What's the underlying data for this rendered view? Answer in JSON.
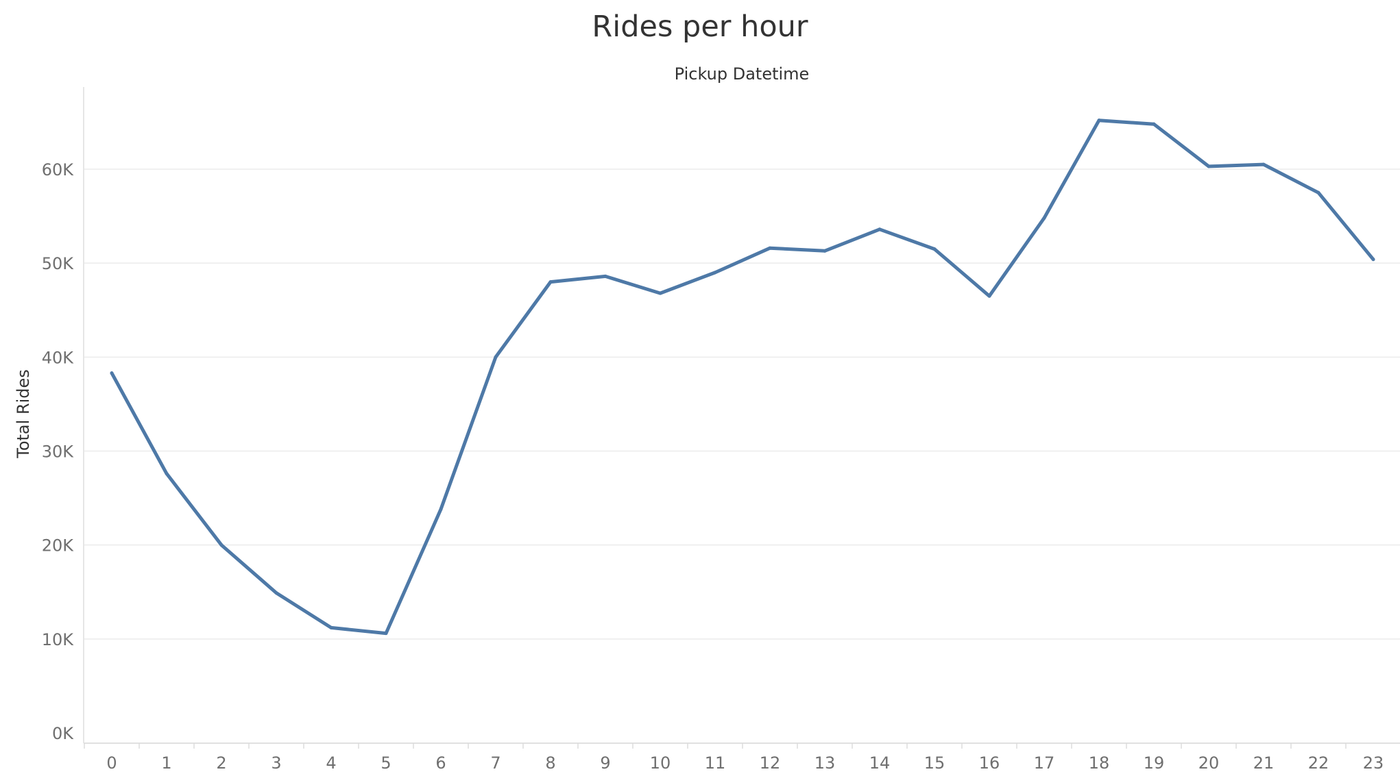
{
  "chart_data": {
    "type": "line",
    "title": "Rides per hour",
    "xlabel": "Pickup Datetime",
    "ylabel": "Total Rides",
    "categories": [
      "0",
      "1",
      "2",
      "3",
      "4",
      "5",
      "6",
      "7",
      "8",
      "9",
      "10",
      "11",
      "12",
      "13",
      "14",
      "15",
      "16",
      "17",
      "18",
      "19",
      "20",
      "21",
      "22",
      "23"
    ],
    "series": [
      {
        "name": "",
        "color": "#4e79a7",
        "values": [
          38300,
          27600,
          20000,
          14900,
          11200,
          10600,
          23800,
          40000,
          48000,
          48600,
          46800,
          49000,
          51600,
          51300,
          53600,
          51500,
          46500,
          54800,
          65200,
          64800,
          60300,
          60500,
          57500,
          50400
        ]
      }
    ],
    "y_ticks": [
      "0K",
      "10K",
      "20K",
      "30K",
      "40K",
      "50K",
      "60K"
    ],
    "y_tick_values": [
      0,
      10000,
      20000,
      30000,
      40000,
      50000,
      60000
    ],
    "ylim": [
      0,
      67000
    ],
    "grid": true,
    "legend": "none"
  }
}
